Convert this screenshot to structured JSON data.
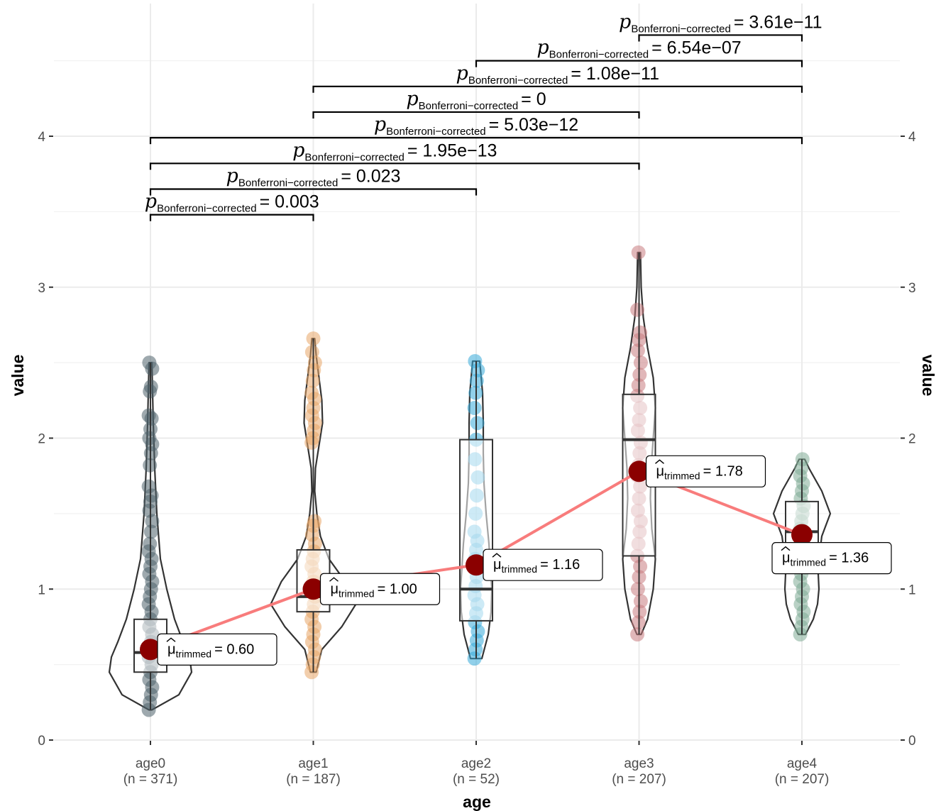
{
  "chart_data": {
    "type": "violin",
    "xlabel": "age",
    "ylabel": "value",
    "ylabel_right": "value",
    "ylim": [
      0,
      4.6
    ],
    "y_ticks": [
      0,
      1,
      2,
      3,
      4
    ],
    "grid": true,
    "legend": "none",
    "categories": [
      {
        "name": "age0",
        "n_label": "(n = 371)",
        "color": "#4e636b",
        "box": {
          "q1": 0.45,
          "median": 0.58,
          "q3": 0.8,
          "whisker_low": 0.2,
          "whisker_high": 2.5
        },
        "trimmed_mean": 0.6,
        "label_prefix": "μ",
        "label_sub": "trimmed",
        "label_value": "= 0.60",
        "violin_range": [
          0.2,
          2.5
        ],
        "violin_profile": [
          [
            0.2,
            2
          ],
          [
            0.3,
            40
          ],
          [
            0.45,
            58
          ],
          [
            0.55,
            55
          ],
          [
            0.65,
            46
          ],
          [
            0.8,
            34
          ],
          [
            1.0,
            23
          ],
          [
            1.2,
            14
          ],
          [
            1.5,
            9
          ],
          [
            1.8,
            6
          ],
          [
            2.1,
            4
          ],
          [
            2.5,
            2
          ]
        ],
        "points": [
          0.2,
          0.25,
          0.3,
          0.35,
          0.4,
          0.45,
          0.5,
          0.55,
          0.6,
          0.65,
          0.7,
          0.75,
          0.8,
          0.85,
          0.9,
          0.95,
          1.0,
          1.05,
          1.1,
          1.15,
          1.2,
          1.25,
          1.3,
          1.38,
          1.45,
          1.52,
          1.58,
          1.62,
          1.68,
          1.82,
          1.9,
          1.96,
          2.0,
          2.06,
          2.13,
          2.15,
          2.31,
          2.34,
          2.46,
          2.5
        ]
      },
      {
        "name": "age1",
        "n_label": "(n = 187)",
        "color": "#e7a667",
        "box": {
          "q1": 0.85,
          "median": 0.95,
          "q3": 1.26,
          "whisker_low": 0.45,
          "whisker_high": 2.66
        },
        "trimmed_mean": 1.0,
        "label_prefix": "μ",
        "label_sub": "trimmed",
        "label_value": "= 1.00",
        "violin_range": [
          0.45,
          2.66
        ],
        "violin_profile": [
          [
            0.45,
            4
          ],
          [
            0.6,
            12
          ],
          [
            0.75,
            40
          ],
          [
            0.9,
            60
          ],
          [
            1.05,
            45
          ],
          [
            1.2,
            22
          ],
          [
            1.35,
            10
          ],
          [
            1.5,
            5
          ],
          [
            1.65,
            2
          ],
          [
            1.8,
            3
          ],
          [
            1.95,
            8
          ],
          [
            2.1,
            13
          ],
          [
            2.25,
            12
          ],
          [
            2.4,
            8
          ],
          [
            2.55,
            4
          ],
          [
            2.66,
            2
          ]
        ],
        "points": [
          0.45,
          0.5,
          0.55,
          0.6,
          0.65,
          0.7,
          0.75,
          0.8,
          0.85,
          0.9,
          0.95,
          1.0,
          1.05,
          1.1,
          1.15,
          1.2,
          1.25,
          1.3,
          1.36,
          1.42,
          1.45,
          1.97,
          2.0,
          2.05,
          2.1,
          2.15,
          2.2,
          2.26,
          2.3,
          2.38,
          2.45,
          2.5,
          2.57,
          2.66
        ]
      },
      {
        "name": "age2",
        "n_label": "(n = 52)",
        "color": "#36a9d8",
        "box": {
          "q1": 0.79,
          "median": 1.0,
          "q3": 1.99,
          "whisker_low": 0.54,
          "whisker_high": 2.51
        },
        "trimmed_mean": 1.16,
        "label_prefix": "μ",
        "label_sub": "trimmed",
        "label_value": "= 1.16",
        "violin_range": [
          0.54,
          2.51
        ],
        "violin_profile": [
          [
            0.54,
            8
          ],
          [
            0.7,
            17
          ],
          [
            0.85,
            21
          ],
          [
            1.0,
            22
          ],
          [
            1.15,
            20
          ],
          [
            1.3,
            18
          ],
          [
            1.5,
            14
          ],
          [
            1.7,
            11
          ],
          [
            1.9,
            10
          ],
          [
            2.1,
            10
          ],
          [
            2.3,
            9
          ],
          [
            2.51,
            5
          ]
        ],
        "points": [
          0.54,
          0.6,
          0.66,
          0.72,
          0.78,
          0.84,
          0.9,
          0.96,
          1.02,
          1.08,
          1.14,
          1.2,
          1.26,
          1.32,
          1.38,
          1.5,
          1.62,
          1.74,
          1.86,
          1.99,
          2.1,
          2.2,
          2.3,
          2.38,
          2.45,
          2.51
        ]
      },
      {
        "name": "age3",
        "n_label": "(n = 207)",
        "color": "#c87c80",
        "box": {
          "q1": 1.22,
          "median": 1.99,
          "q3": 2.29,
          "whisker_low": 0.7,
          "whisker_high": 3.23
        },
        "trimmed_mean": 1.78,
        "label_prefix": "μ",
        "label_sub": "trimmed",
        "label_value": "= 1.78",
        "violin_range": [
          0.7,
          3.23
        ],
        "violin_profile": [
          [
            0.7,
            3
          ],
          [
            0.8,
            12
          ],
          [
            1.0,
            20
          ],
          [
            1.2,
            23
          ],
          [
            1.4,
            18
          ],
          [
            1.6,
            16
          ],
          [
            1.8,
            17
          ],
          [
            2.0,
            20
          ],
          [
            2.2,
            23
          ],
          [
            2.4,
            20
          ],
          [
            2.6,
            12
          ],
          [
            2.8,
            6
          ],
          [
            3.0,
            3
          ],
          [
            3.23,
            2
          ]
        ],
        "points": [
          0.7,
          0.78,
          0.85,
          0.92,
          1.0,
          1.08,
          1.15,
          1.22,
          1.3,
          1.38,
          1.45,
          1.52,
          1.6,
          1.68,
          1.75,
          1.82,
          1.9,
          1.97,
          2.05,
          2.12,
          2.2,
          2.28,
          2.35,
          2.42,
          2.5,
          2.58,
          2.65,
          2.7,
          2.85,
          3.23
        ]
      },
      {
        "name": "age4",
        "n_label": "(n = 207)",
        "color": "#7fac96",
        "box": {
          "q1": 1.3,
          "median": 1.38,
          "q3": 1.58,
          "whisker_low": 0.7,
          "whisker_high": 1.86
        },
        "trimmed_mean": 1.36,
        "label_prefix": "μ",
        "label_sub": "trimmed",
        "label_value": "= 1.36",
        "violin_range": [
          0.7,
          1.86
        ],
        "violin_profile": [
          [
            0.7,
            5
          ],
          [
            0.8,
            16
          ],
          [
            0.9,
            22
          ],
          [
            1.0,
            24
          ],
          [
            1.1,
            23
          ],
          [
            1.2,
            24
          ],
          [
            1.35,
            28
          ],
          [
            1.5,
            40
          ],
          [
            1.65,
            28
          ],
          [
            1.8,
            10
          ],
          [
            1.86,
            4
          ]
        ],
        "points": [
          0.7,
          0.75,
          0.8,
          0.85,
          0.9,
          0.95,
          1.0,
          1.05,
          1.1,
          1.15,
          1.2,
          1.25,
          1.3,
          1.35,
          1.4,
          1.45,
          1.5,
          1.55,
          1.6,
          1.65,
          1.7,
          1.75,
          1.8,
          1.86
        ]
      }
    ],
    "comparisons": [
      {
        "from": "age0",
        "to": "age1",
        "y": 3.48,
        "p_symbol": "p",
        "p_sub": "Bonferroni−corrected",
        "p_value": "= 0.003"
      },
      {
        "from": "age0",
        "to": "age2",
        "y": 3.65,
        "p_symbol": "p",
        "p_sub": "Bonferroni−corrected",
        "p_value": "= 0.023"
      },
      {
        "from": "age0",
        "to": "age3",
        "y": 3.82,
        "p_symbol": "p",
        "p_sub": "Bonferroni−corrected",
        "p_value": "= 1.95e−13"
      },
      {
        "from": "age0",
        "to": "age4",
        "y": 3.99,
        "p_symbol": "p",
        "p_sub": "Bonferroni−corrected",
        "p_value": "= 5.03e−12"
      },
      {
        "from": "age1",
        "to": "age3",
        "y": 4.16,
        "p_symbol": "p",
        "p_sub": "Bonferroni−corrected",
        "p_value": "= 0"
      },
      {
        "from": "age1",
        "to": "age4",
        "y": 4.33,
        "p_symbol": "p",
        "p_sub": "Bonferroni−corrected",
        "p_value": "= 1.08e−11"
      },
      {
        "from": "age2",
        "to": "age4",
        "y": 4.5,
        "p_symbol": "p",
        "p_sub": "Bonferroni−corrected",
        "p_value": "= 6.54e−07"
      },
      {
        "from": "age3",
        "to": "age4",
        "y": 4.67,
        "p_symbol": "p",
        "p_sub": "Bonferroni−corrected",
        "p_value": "= 3.61e−11"
      }
    ],
    "mean_line_color": "#f87c7c",
    "mean_point_color": "#8b0000"
  }
}
